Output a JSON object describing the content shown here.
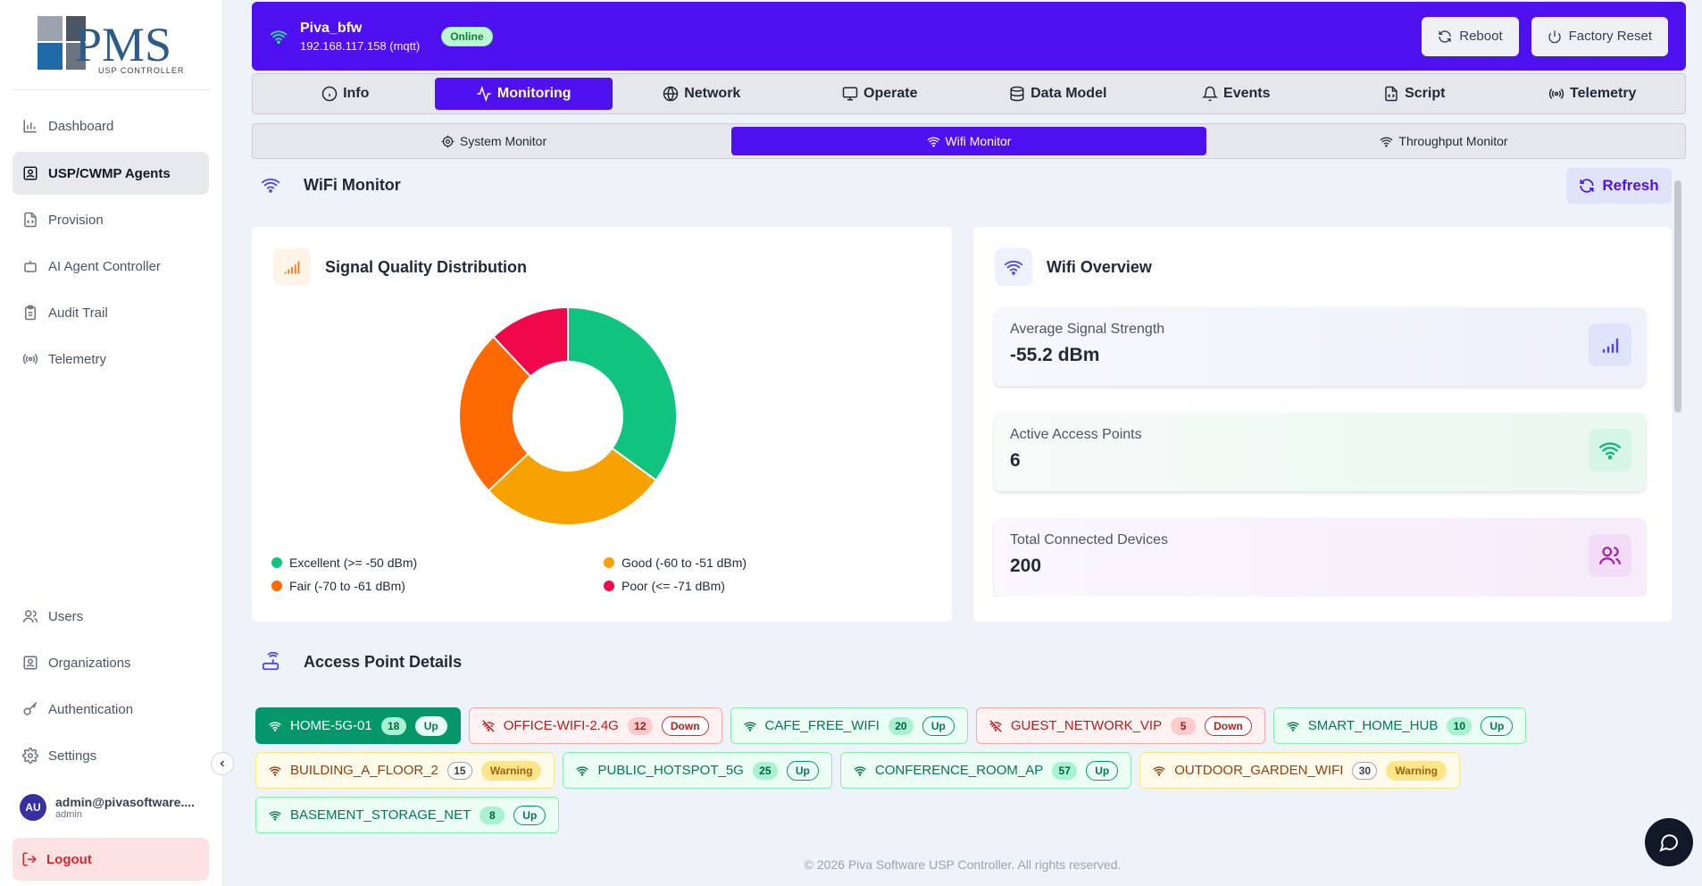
{
  "brand": {
    "logo_text": "PMS",
    "logo_subtext": "USP CONTROLLER"
  },
  "sidebar": {
    "top_items": [
      {
        "label": "Dashboard",
        "icon": "bar-chart-icon"
      },
      {
        "label": "USP/CWMP Agents",
        "icon": "agents-icon",
        "active": true
      },
      {
        "label": "Provision",
        "icon": "provision-icon"
      },
      {
        "label": "AI Agent Controller",
        "icon": "bot-icon"
      },
      {
        "label": "Audit Trail",
        "icon": "clipboard-icon"
      },
      {
        "label": "Telemetry",
        "icon": "radio-icon"
      }
    ],
    "bottom_items": [
      {
        "label": "Users",
        "icon": "users-icon"
      },
      {
        "label": "Organizations",
        "icon": "building-icon"
      },
      {
        "label": "Authentication",
        "icon": "key-icon"
      },
      {
        "label": "Settings",
        "icon": "gear-icon"
      }
    ],
    "user": {
      "initials": "AU",
      "email": "admin@pivasoftware....",
      "role": "admin"
    },
    "logout_label": "Logout"
  },
  "device": {
    "name": "Piva_bfw",
    "address": "192.168.117.158 (mqtt)",
    "status": "Online"
  },
  "header_actions": {
    "reboot": "Reboot",
    "factory_reset": "Factory Reset"
  },
  "tabs": [
    {
      "label": "Info",
      "icon": "info-icon"
    },
    {
      "label": "Monitoring",
      "icon": "activity-icon",
      "active": true
    },
    {
      "label": "Network",
      "icon": "globe-icon"
    },
    {
      "label": "Operate",
      "icon": "monitor-icon"
    },
    {
      "label": "Data Model",
      "icon": "database-icon"
    },
    {
      "label": "Events",
      "icon": "bell-icon"
    },
    {
      "label": "Script",
      "icon": "file-code-icon"
    },
    {
      "label": "Telemetry",
      "icon": "radio-icon"
    }
  ],
  "subtabs": [
    {
      "label": "System Monitor",
      "icon": "cpu-icon"
    },
    {
      "label": "Wifi Monitor",
      "icon": "wifi-icon",
      "active": true
    },
    {
      "label": "Throughput Monitor",
      "icon": "wifi-icon"
    }
  ],
  "page": {
    "title": "WiFi Monitor",
    "refresh_label": "Refresh"
  },
  "signal_card": {
    "title": "Signal Quality Distribution"
  },
  "chart_data": {
    "type": "pie",
    "variant": "donut",
    "title": "Signal Quality Distribution",
    "categories": [
      "Excellent (>= -50 dBm)",
      "Good (-60 to -51 dBm)",
      "Fair (-70 to -61 dBm)",
      "Poor (<= -71 dBm)"
    ],
    "values": [
      35,
      28,
      25,
      12
    ],
    "colors": [
      "#10c47f",
      "#f7a200",
      "#ff6a00",
      "#f0084a"
    ],
    "legend": "bottom"
  },
  "overview": {
    "title": "Wifi Overview",
    "stats": [
      {
        "label": "Average Signal Strength",
        "value": "-55.2 dBm",
        "icon": "signal-bars-icon",
        "accent": "#4f46e5"
      },
      {
        "label": "Active Access Points",
        "value": "6",
        "icon": "wifi-icon",
        "accent": "#10b981"
      },
      {
        "label": "Total Connected Devices",
        "value": "200",
        "icon": "users-icon",
        "accent": "#a21caf"
      }
    ]
  },
  "ap_section": {
    "title": "Access Point Details"
  },
  "access_points": [
    {
      "name": "HOME-5G-01",
      "count": "18",
      "status": "Up",
      "state": "active"
    },
    {
      "name": "OFFICE-WIFI-2.4G",
      "count": "12",
      "status": "Down",
      "state": "down"
    },
    {
      "name": "CAFE_FREE_WIFI",
      "count": "20",
      "status": "Up",
      "state": "up"
    },
    {
      "name": "GUEST_NETWORK_VIP",
      "count": "5",
      "status": "Down",
      "state": "down"
    },
    {
      "name": "SMART_HOME_HUB",
      "count": "10",
      "status": "Up",
      "state": "up"
    },
    {
      "name": "BUILDING_A_FLOOR_2",
      "count": "15",
      "status": "Warning",
      "state": "warning"
    },
    {
      "name": "PUBLIC_HOTSPOT_5G",
      "count": "25",
      "status": "Up",
      "state": "up"
    },
    {
      "name": "CONFERENCE_ROOM_AP",
      "count": "57",
      "status": "Up",
      "state": "up"
    },
    {
      "name": "OUTDOOR_GARDEN_WIFI",
      "count": "30",
      "status": "Warning",
      "state": "warning"
    },
    {
      "name": "BASEMENT_STORAGE_NET",
      "count": "8",
      "status": "Up",
      "state": "up"
    }
  ],
  "footer": "© 2026 Piva Software USP Controller. All rights reserved."
}
